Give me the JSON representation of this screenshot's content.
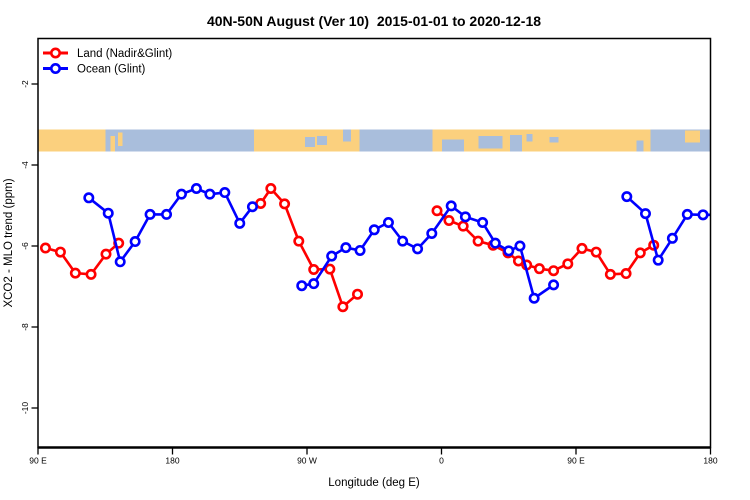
{
  "chart_data": {
    "type": "line",
    "title": "40N-50N August (Ver 10)  2015-01-01 to 2020-12-18",
    "xlabel": "Longitude (deg E)",
    "ylabel": "XCO2 - MLO trend (ppm)",
    "x_axis_note": "longitude path coordinate: 90=90E, 180=180, 270=90W, 360=0, 450=90E, 540=180 (wraps eastward)",
    "x_range": [
      90,
      540
    ],
    "y_range": [
      -11.1,
      -0.85
    ],
    "x_ticks": [
      {
        "value": 90,
        "label": "90 E"
      },
      {
        "value": 180,
        "label": "180"
      },
      {
        "value": 270,
        "label": "90 W"
      },
      {
        "value": 360,
        "label": "0"
      },
      {
        "value": 450,
        "label": "90 E"
      },
      {
        "value": 540,
        "label": "180"
      }
    ],
    "y_ticks": [
      {
        "value": -2,
        "label": "-2"
      },
      {
        "value": -4,
        "label": "-4"
      },
      {
        "value": -6,
        "label": "-6"
      },
      {
        "value": -8,
        "label": "-8"
      },
      {
        "value": -10,
        "label": "-10"
      }
    ],
    "series": [
      {
        "name": "Land (Nadir&Glint)",
        "color": "#ff0000",
        "segments": [
          {
            "points": [
              [
                95,
                -6.05
              ],
              [
                105,
                -6.15
              ],
              [
                115,
                -6.67
              ],
              [
                125.5,
                -6.7
              ],
              [
                135.5,
                -6.2
              ],
              [
                144,
                -5.93
              ]
            ]
          },
          {
            "points": [
              [
                239,
                -4.95
              ],
              [
                245.8,
                -4.58
              ],
              [
                255,
                -4.96
              ],
              [
                264.5,
                -5.88
              ],
              [
                274.5,
                -6.58
              ],
              [
                285.3,
                -6.57
              ],
              [
                294,
                -7.5
              ],
              [
                303.8,
                -7.19
              ]
            ]
          },
          {
            "points": [
              [
                357,
                -5.13
              ],
              [
                365,
                -5.37
              ],
              [
                374.5,
                -5.51
              ],
              [
                384.5,
                -5.88
              ],
              [
                394.5,
                -5.98
              ],
              [
                404.5,
                -6.17
              ],
              [
                411.5,
                -6.37
              ],
              [
                417,
                -6.47
              ],
              [
                425.5,
                -6.56
              ],
              [
                435,
                -6.61
              ],
              [
                444.5,
                -6.44
              ],
              [
                454,
                -6.06
              ],
              [
                463.5,
                -6.15
              ],
              [
                473,
                -6.7
              ],
              [
                483.5,
                -6.68
              ],
              [
                493,
                -6.17
              ],
              [
                502,
                -5.98
              ]
            ]
          }
        ]
      },
      {
        "name": "Ocean (Glint)",
        "color": "#0000ff",
        "segments": [
          {
            "points": [
              [
                124,
                -4.81
              ],
              [
                137,
                -5.19
              ],
              [
                145,
                -6.39
              ],
              [
                155,
                -5.89
              ],
              [
                165,
                -5.22
              ],
              [
                176,
                -5.22
              ],
              [
                186,
                -4.72
              ],
              [
                196,
                -4.58
              ],
              [
                205,
                -4.72
              ],
              [
                215,
                -4.68
              ],
              [
                225,
                -5.44
              ],
              [
                233.5,
                -5.03
              ]
            ]
          },
          {
            "points": [
              [
                266.5,
                -6.98
              ],
              [
                274.5,
                -6.93
              ],
              [
                286.5,
                -6.25
              ],
              [
                296,
                -6.04
              ],
              [
                305.5,
                -6.11
              ],
              [
                315,
                -5.6
              ],
              [
                324.5,
                -5.42
              ],
              [
                334,
                -5.88
              ],
              [
                344,
                -6.07
              ],
              [
                353.5,
                -5.69
              ],
              [
                366.5,
                -5.01
              ],
              [
                376,
                -5.28
              ],
              [
                387.5,
                -5.42
              ],
              [
                396,
                -5.93
              ],
              [
                405,
                -6.12
              ],
              [
                412.5,
                -6.0
              ],
              [
                422,
                -7.29
              ],
              [
                435,
                -6.96
              ]
            ]
          },
          {
            "points": [
              [
                484,
                -4.78
              ],
              [
                496.5,
                -5.2
              ],
              [
                505,
                -6.35
              ],
              [
                514.5,
                -5.81
              ],
              [
                524.5,
                -5.22
              ],
              [
                535,
                -5.23
              ]
            ],
            "tail": [
              540,
              -5.23
            ]
          }
        ]
      }
    ],
    "map_band": {
      "description": "40N-50N latitude world-map strip (land tan, ocean blue-gray)",
      "land_color": "#fbd07e",
      "ocean_color": "#a9bedc",
      "top_value": -3.12,
      "bottom_value": -3.67,
      "land_segments": [
        [
          90,
          135
        ],
        [
          234.5,
          305
        ],
        [
          354,
          500
        ]
      ],
      "partial_land": [
        {
          "range": [
            138.5,
            141.5
          ],
          "t": 0.3,
          "b": 1
        },
        {
          "range": [
            143.5,
            146.5
          ],
          "t": 0.15,
          "b": 0.75
        },
        {
          "range": [
            523,
            533
          ],
          "t": 0.05,
          "b": 0.6
        }
      ],
      "water_patches": [
        {
          "range": [
            268.8,
            275.5
          ],
          "t": 0.35,
          "b": 0.8
        },
        {
          "range": [
            276.8,
            283.5
          ],
          "t": 0.3,
          "b": 0.7
        },
        {
          "range": [
            294.2,
            299.6
          ],
          "t": 0.0,
          "b": 0.55
        },
        {
          "range": [
            360.5,
            375.2
          ],
          "t": 0.45,
          "b": 1
        },
        {
          "range": [
            384.7,
            400.7
          ],
          "t": 0.3,
          "b": 0.85
        },
        {
          "range": [
            406,
            414
          ],
          "t": 0.25,
          "b": 1
        },
        {
          "range": [
            416.8,
            420.8
          ],
          "t": 0.2,
          "b": 0.55
        },
        {
          "range": [
            432.2,
            438.2
          ],
          "t": 0.35,
          "b": 0.6
        },
        {
          "range": [
            490.4,
            495.1
          ],
          "t": 0.5,
          "b": 1
        }
      ]
    },
    "legend_position": "top-left"
  }
}
